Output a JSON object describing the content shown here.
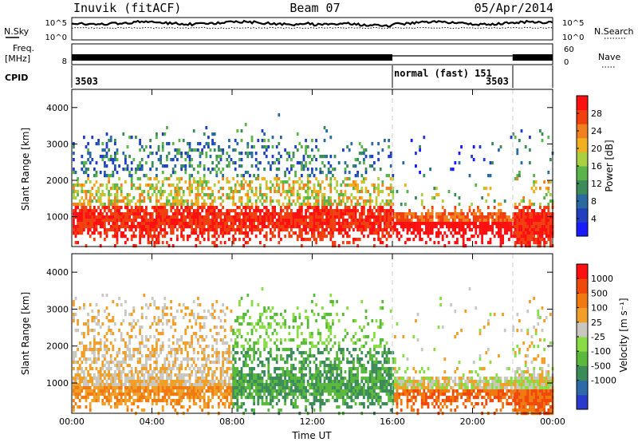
{
  "header": {
    "station": "Inuvik (fitACF)",
    "beam": "Beam 07",
    "date": "05/Apr/2014"
  },
  "status_panels": {
    "nsky_label": "N.Sky",
    "nsearch_label": "N.Search",
    "noise_ticks": [
      "10^5",
      "10^0"
    ],
    "freq_label": "Freq.",
    "freq_unit": "[MHz]",
    "freq_ticks": [
      "8"
    ],
    "nave_label": "Nave",
    "nave_ticks": [
      "60",
      "0"
    ],
    "cpid_label": "CPID",
    "cpid_segments": [
      {
        "label": "3503",
        "start_hour": 0,
        "end_hour": 16
      },
      {
        "label": "normal (fast) 151",
        "start_hour": 16,
        "end_hour": 22
      },
      {
        "label": "3503",
        "start_hour": 22,
        "end_hour": 24
      }
    ]
  },
  "chart_data": [
    {
      "type": "heatmap",
      "name": "power-panel",
      "ylabel": "Slant Range [km]",
      "xlabel": "",
      "x_ticks": [
        "00:00",
        "04:00",
        "08:00",
        "12:00",
        "16:00",
        "20:00",
        "00:00"
      ],
      "xlim_hours": [
        0,
        24
      ],
      "y_ticks": [
        1000,
        2000,
        3000,
        4000
      ],
      "ylim": [
        180,
        4500
      ],
      "colorbar": {
        "label": "Power [dB]",
        "ticks": [
          "4",
          "8",
          "12",
          "16",
          "20",
          "24",
          "28"
        ],
        "range": [
          0,
          32
        ],
        "colors": [
          "#1a1aff",
          "#2040c0",
          "#2a6aa0",
          "#3c8c5a",
          "#5ab44a",
          "#a8d040",
          "#f0b020",
          "#f08020",
          "#f04010",
          "#ff1010"
        ]
      }
    },
    {
      "type": "heatmap",
      "name": "velocity-panel",
      "ylabel": "Slant Range [km]",
      "xlabel": "Time UT",
      "x_ticks": [
        "00:00",
        "04:00",
        "08:00",
        "12:00",
        "16:00",
        "20:00",
        "00:00"
      ],
      "xlim_hours": [
        0,
        24
      ],
      "y_ticks": [
        1000,
        2000,
        3000,
        4000
      ],
      "ylim": [
        180,
        4500
      ],
      "colorbar": {
        "label": "Velocity [m s⁻¹]",
        "ticks": [
          "1000",
          "500",
          "100",
          "25",
          "-25",
          "-100",
          "-500",
          "-1000"
        ],
        "colors": [
          "#2a3acc",
          "#2e6aa8",
          "#3c8c5a",
          "#5ab83c",
          "#88dd44",
          "#c8c8c0",
          "#f0a028",
          "#f07a10",
          "#f04a0a",
          "#ff1010"
        ]
      }
    }
  ]
}
